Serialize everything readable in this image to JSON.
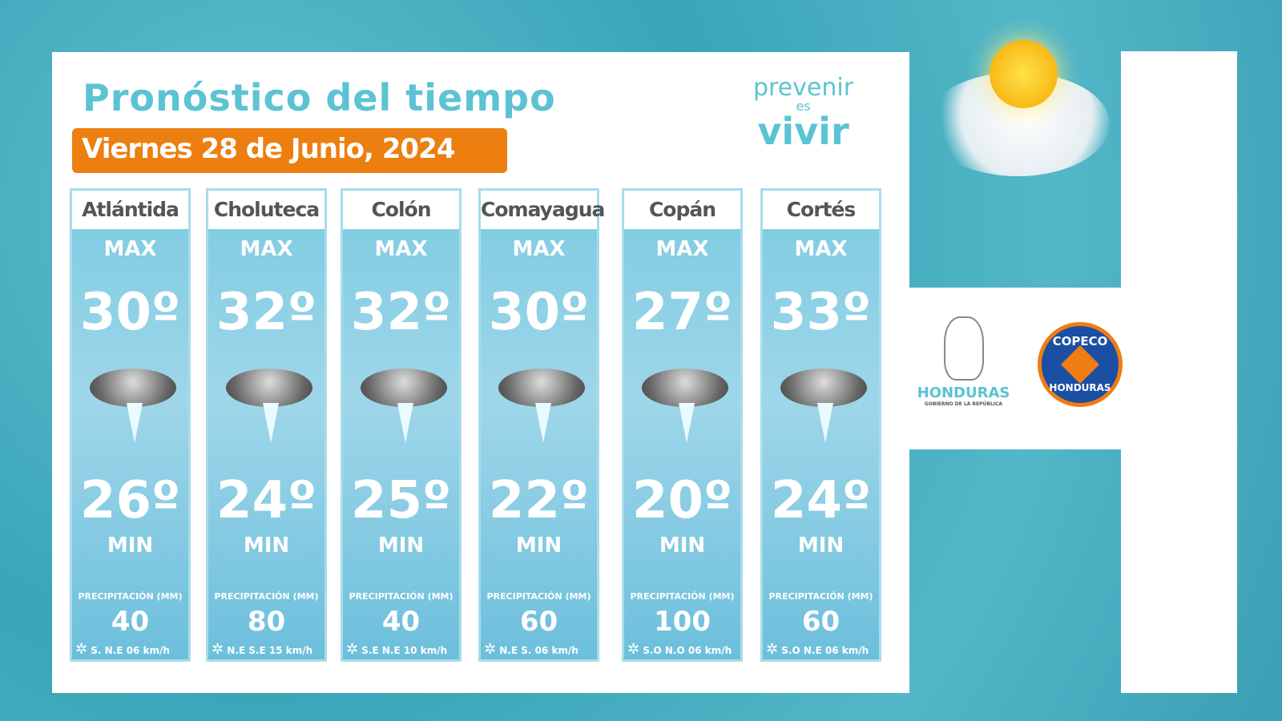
{
  "title": "Pronóstico del tiempo",
  "date": "Viernes 28 de Junio, 2024",
  "logo_prevenir": {
    "line1": "prevenir",
    "line2": "es",
    "line3": "vivir"
  },
  "labels": {
    "max": "MAX",
    "min": "MIN",
    "precip": "PRECIPITACIÓN (MM)"
  },
  "weather_icon": "thunderstorm-icon",
  "departments": [
    {
      "name": "Atlántida",
      "max": "30º",
      "min": "26º",
      "precip": "40",
      "wind": "S. N.E   06 km/h"
    },
    {
      "name": "Choluteca",
      "max": "32º",
      "min": "24º",
      "precip": "80",
      "wind": "N.E  S.E 15 km/h"
    },
    {
      "name": "Colón",
      "max": "32º",
      "min": "25º",
      "precip": "40",
      "wind": "S.E  N.E  10  km/h"
    },
    {
      "name": "Comayagua",
      "max": "30º",
      "min": "22º",
      "precip": "60",
      "wind": "N.E  S. 06 km/h"
    },
    {
      "name": "Copán",
      "max": "27º",
      "min": "20º",
      "precip": "100",
      "wind": "S.O N.O  06 km/h"
    },
    {
      "name": "Cortés",
      "max": "33º",
      "min": "24º",
      "precip": "60",
      "wind": "S.O  N.E 06 km/h"
    }
  ],
  "honduras_logo": {
    "name": "HONDURAS",
    "subtitle": "GOBIERNO DE LA REPÚBLICA"
  },
  "copeco_logo": {
    "top": "COPECO",
    "bottom": "HONDURAS"
  },
  "colors": {
    "accent": "#5cc3d3",
    "date_bg": "#ec7f10",
    "card": "#8fd0e6"
  }
}
